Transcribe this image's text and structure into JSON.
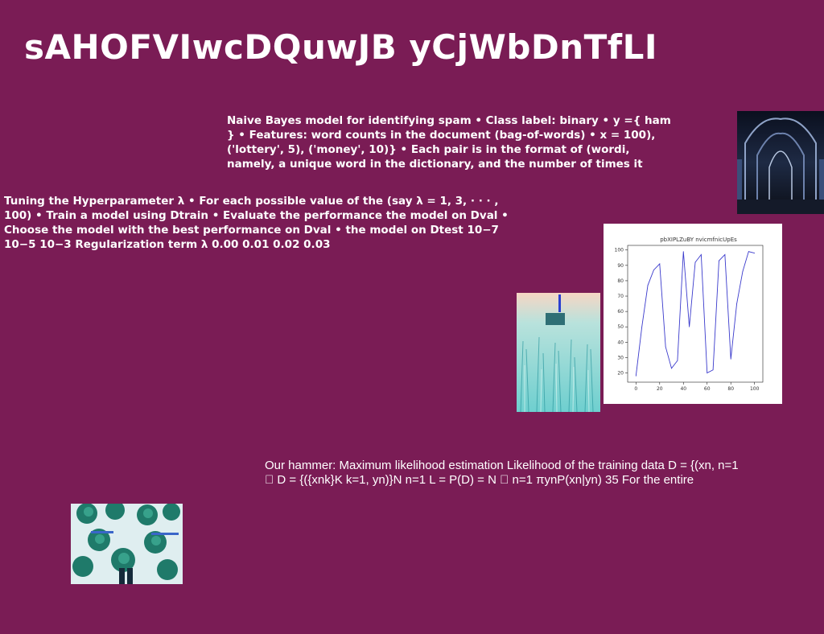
{
  "page": {
    "title": "sAHOFVIwcDQuwJB yCjWbDnTfLI"
  },
  "text_blocks": {
    "spam": "Naive Bayes model for identifying spam • Class label: binary • y ={ ham } • Features: word counts in the document (bag-of-words) • x = 100), ('lottery', 5), ('money', 10)} • Each pair is in the format of (wordi, namely, a unique word in the dictionary, and the number of times it",
    "tuning": "Tuning the Hyperparameter λ • For each possible value of the (say λ = 1, 3, · · · , 100) • Train a model using Dtrain • Evaluate the performance the model on Dval • Choose the model with the best performance on Dval • the model on Dtest 10−7 10−5 10−3 Regularization term λ 0.00 0.01 0.02 0.03",
    "mle": "Our hammer: Maximum likelihood estimation Likelihood of the training data D = {(xn, n=1 􏰉 D = {({xnk}K k=1, yn)}N n=1 L = P(D) = N 􏰊 n=1 πynP(xn|yn) 35 For the entire"
  },
  "images": {
    "cathedral": "gothic cathedral interior photo",
    "field": "teal grass field photo",
    "palms": "aerial palm trees photo"
  },
  "chart_data": {
    "type": "line",
    "title": "pbXIPLZuBY nvicmfnicUpEs",
    "x": [
      0,
      5,
      10,
      15,
      20,
      25,
      30,
      35,
      40,
      45,
      50,
      55,
      60,
      65,
      70,
      75,
      80,
      85,
      90,
      95,
      100
    ],
    "y": [
      18,
      50,
      77,
      87,
      91,
      37,
      23,
      28,
      99,
      50,
      92,
      97,
      20,
      22,
      93,
      97,
      29,
      65,
      86,
      99,
      98
    ],
    "xticks": [
      0,
      20,
      40,
      60,
      80,
      100
    ],
    "yticks": [
      20,
      30,
      40,
      50,
      60,
      70,
      80,
      90,
      100
    ],
    "xlim": [
      -7,
      107
    ],
    "ylim": [
      14,
      103
    ],
    "color": "#3a3acc"
  }
}
